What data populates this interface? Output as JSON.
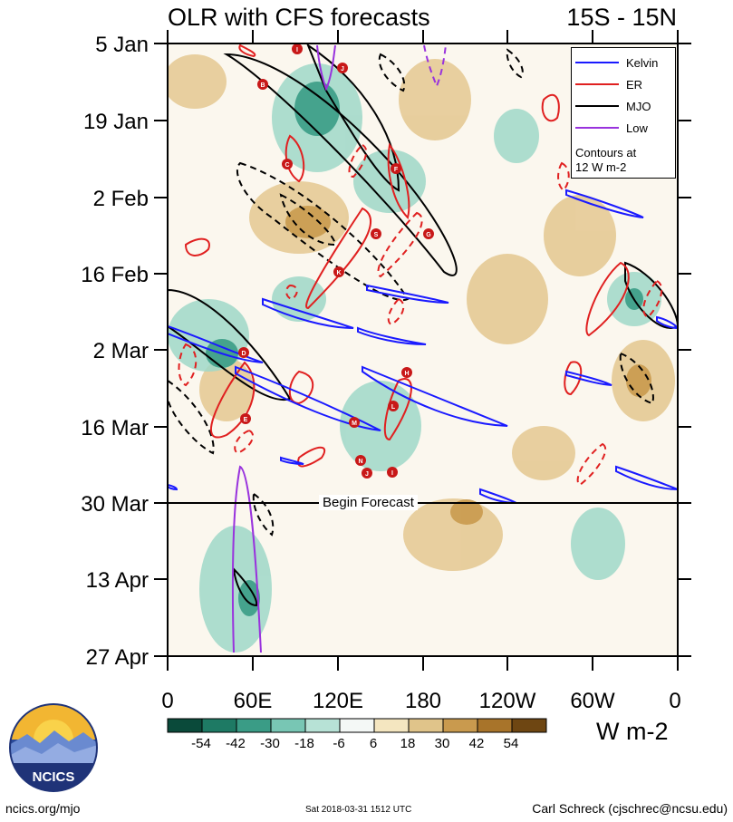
{
  "title": {
    "left": "OLR with CFS forecasts",
    "right": "15S - 15N"
  },
  "legend": {
    "entries": [
      {
        "name": "Kelvin",
        "color": "#1a1aff"
      },
      {
        "name": "ER",
        "color": "#e02020"
      },
      {
        "name": "MJO",
        "color": "#000000"
      },
      {
        "name": "Low",
        "color": "#9933dd"
      }
    ],
    "note_line1": "Contours at",
    "note_line2": "12 W m-2"
  },
  "forecast_label": "Begin Forecast",
  "colorbar": {
    "units": "W m-2",
    "ticks": [
      "-54",
      "-42",
      "-30",
      "-18",
      "-6",
      "6",
      "18",
      "30",
      "42",
      "54"
    ],
    "colors": [
      "#0a4a3a",
      "#1e7a64",
      "#3a9c86",
      "#78c6b4",
      "#b7e2d6",
      "#f4f8f6",
      "#f4e6c0",
      "#e0c48a",
      "#c99a4e",
      "#a8742a",
      "#6e4612"
    ]
  },
  "footer": {
    "url": "ncics.org/mjo",
    "date": "Sat 2018-03-31 1512 UTC",
    "author": "Carl Schreck (cjschrec@ncsu.edu)"
  },
  "logo_text": "NCICS",
  "chart_data": {
    "type": "heatmap",
    "title": "OLR with CFS forecasts",
    "subtitle": "15S - 15N",
    "x_tick_labels": [
      "0",
      "60E",
      "120E",
      "180",
      "120W",
      "60W",
      "0"
    ],
    "x_range_deg_east": [
      0,
      360
    ],
    "y_tick_labels": [
      "5 Jan",
      "19 Jan",
      "2 Feb",
      "16 Feb",
      "2 Mar",
      "16 Mar",
      "30 Mar",
      "13 Apr",
      "27 Apr"
    ],
    "y_range_days": [
      "5 Jan",
      "27 Apr"
    ],
    "forecast_start": "30 Mar",
    "units": "W m-2",
    "contour_interval": 12,
    "storm_markers": [
      "I",
      "J",
      "B",
      "C",
      "F",
      "S",
      "G",
      "K",
      "D",
      "H",
      "L",
      "E",
      "M",
      "N",
      "J",
      "I"
    ]
  }
}
